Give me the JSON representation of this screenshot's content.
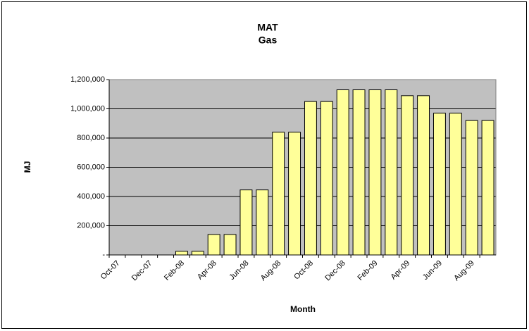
{
  "chart_data": {
    "type": "bar",
    "title": "MAT",
    "subtitle": "Gas",
    "x_label": "Month",
    "y_label": "MJ",
    "categories": [
      "Oct-07",
      null,
      "Dec-07",
      null,
      "Feb-08",
      null,
      "Apr-08",
      null,
      "Jun-08",
      null,
      "Aug-08",
      null,
      "Oct-08",
      null,
      "Dec-08",
      null,
      "Feb-09",
      null,
      "Apr-09",
      null,
      "Jun-09",
      null,
      "Aug-09",
      null
    ],
    "values": [
      null,
      null,
      null,
      null,
      25000,
      25000,
      140000,
      140000,
      445000,
      445000,
      840000,
      840000,
      1050000,
      1050000,
      1130000,
      1130000,
      1130000,
      1130000,
      1090000,
      1090000,
      970000,
      970000,
      920000,
      920000
    ],
    "color": "#ffff99",
    "plot_background": "#c0c0c0",
    "ylim": [
      0,
      1200000
    ],
    "yticks": [
      {
        "value": 0,
        "label": "-"
      },
      {
        "value": 200000,
        "label": "200,000"
      },
      {
        "value": 400000,
        "label": "400,000"
      },
      {
        "value": 600000,
        "label": "600,000"
      },
      {
        "value": 800000,
        "label": "800,000"
      },
      {
        "value": 1000000,
        "label": "1,000,000"
      },
      {
        "value": 1200000,
        "label": "1,200,000"
      }
    ],
    "grid": true
  }
}
